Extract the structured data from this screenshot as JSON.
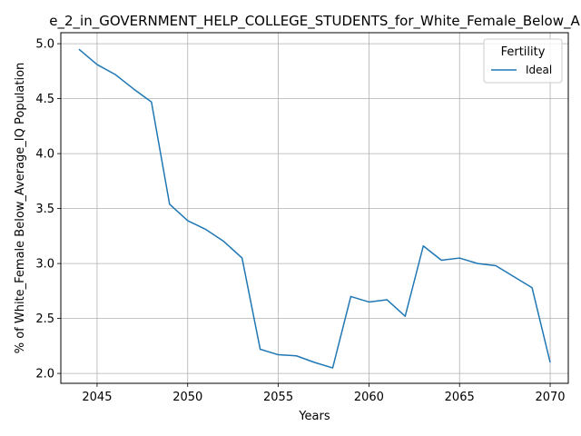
{
  "chart_data": {
    "type": "line",
    "title": "e_2_in_GOVERNMENT_HELP_COLLEGE_STUDENTS_for_White_Female_Below_A",
    "xlabel": "Years",
    "ylabel": "% of White_Female Below_Average_IQ Population",
    "xlim": [
      2043,
      2071
    ],
    "ylim": [
      1.91,
      5.1
    ],
    "xticks": [
      2045,
      2050,
      2055,
      2060,
      2065,
      2070
    ],
    "xtick_labels": [
      "2045",
      "2050",
      "2055",
      "2060",
      "2065",
      "2070"
    ],
    "yticks": [
      2.0,
      2.5,
      3.0,
      3.5,
      4.0,
      4.5,
      5.0
    ],
    "ytick_labels": [
      "2.0",
      "2.5",
      "3.0",
      "3.5",
      "4.0",
      "4.5",
      "5.0"
    ],
    "grid": true,
    "legend": {
      "title": "Fertility",
      "position": "top-right"
    },
    "series": [
      {
        "name": "Ideal",
        "color": "#1f77b4",
        "x": [
          2044,
          2045,
          2046,
          2047,
          2048,
          2049,
          2050,
          2051,
          2052,
          2053,
          2054,
          2055,
          2056,
          2057,
          2058,
          2059,
          2060,
          2061,
          2062,
          2063,
          2064,
          2065,
          2066,
          2067,
          2068,
          2069,
          2070
        ],
        "y": [
          4.95,
          4.81,
          4.72,
          4.59,
          4.47,
          3.54,
          3.39,
          3.31,
          3.2,
          3.05,
          2.22,
          2.17,
          2.16,
          2.1,
          2.05,
          2.7,
          2.65,
          2.67,
          2.52,
          3.16,
          3.03,
          3.05,
          3.0,
          2.98,
          2.88,
          2.78,
          2.1
        ]
      }
    ]
  }
}
